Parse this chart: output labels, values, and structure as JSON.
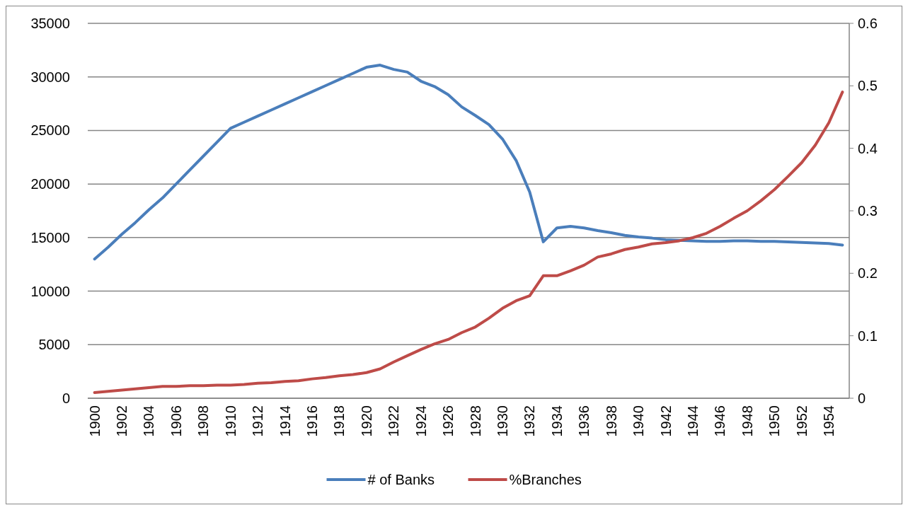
{
  "chart_data": {
    "type": "line",
    "x": [
      1900,
      1901,
      1902,
      1903,
      1904,
      1905,
      1906,
      1907,
      1908,
      1909,
      1910,
      1911,
      1912,
      1913,
      1914,
      1915,
      1916,
      1917,
      1918,
      1919,
      1920,
      1921,
      1922,
      1923,
      1924,
      1925,
      1926,
      1927,
      1928,
      1929,
      1930,
      1931,
      1932,
      1933,
      1934,
      1935,
      1936,
      1937,
      1938,
      1939,
      1940,
      1941,
      1942,
      1943,
      1944,
      1945,
      1946,
      1947,
      1948,
      1949,
      1950,
      1951,
      1952,
      1953,
      1954,
      1955
    ],
    "series": [
      {
        "name": "# of Banks",
        "color": "#4a7ebb",
        "values": [
          13000,
          14100,
          15300,
          16400,
          17600,
          18700,
          20000,
          21300,
          22600,
          23900,
          25200,
          25770,
          26340,
          26910,
          27480,
          28050,
          28620,
          29190,
          29760,
          30330,
          30900,
          31100,
          30700,
          30450,
          29600,
          29100,
          28350,
          27200,
          26400,
          25550,
          24200,
          22200,
          19250,
          14600,
          15900,
          16050,
          15900,
          15650,
          15450,
          15200,
          15050,
          14950,
          14800,
          14750,
          14700,
          14650,
          14650,
          14700,
          14700,
          14650,
          14650,
          14600,
          14550,
          14500,
          14450,
          14300
        ]
      },
      {
        "name": "%Branches",
        "color": "#be4b48",
        "axis": "y2",
        "values": [
          0.009,
          0.011,
          0.013,
          0.015,
          0.017,
          0.019,
          0.019,
          0.02,
          0.02,
          0.021,
          0.021,
          0.022,
          0.024,
          0.025,
          0.027,
          0.028,
          0.031,
          0.033,
          0.036,
          0.038,
          0.041,
          0.047,
          0.058,
          0.068,
          0.078,
          0.087,
          0.094,
          0.105,
          0.114,
          0.128,
          0.144,
          0.156,
          0.164,
          0.196,
          0.196,
          0.204,
          0.213,
          0.226,
          0.231,
          0.238,
          0.242,
          0.247,
          0.249,
          0.252,
          0.257,
          0.264,
          0.275,
          0.288,
          0.3,
          0.316,
          0.334,
          0.355,
          0.377,
          0.405,
          0.441,
          0.49
        ]
      }
    ],
    "xlim": [
      1899.5,
      1955.5
    ],
    "xticks": [
      1900,
      1902,
      1904,
      1906,
      1908,
      1910,
      1912,
      1914,
      1916,
      1918,
      1920,
      1922,
      1924,
      1926,
      1928,
      1930,
      1932,
      1934,
      1936,
      1938,
      1940,
      1942,
      1944,
      1946,
      1948,
      1950,
      1952,
      1954
    ],
    "ylim": [
      0,
      35000
    ],
    "yticks": [
      0,
      5000,
      10000,
      15000,
      20000,
      25000,
      30000,
      35000
    ],
    "y2lim": [
      0,
      0.6
    ],
    "y2ticks": [
      0,
      0.1,
      0.2,
      0.3,
      0.4,
      0.5,
      0.6
    ],
    "grid": "y",
    "legend": "bottom",
    "marker": "none",
    "line_style": "solid"
  }
}
